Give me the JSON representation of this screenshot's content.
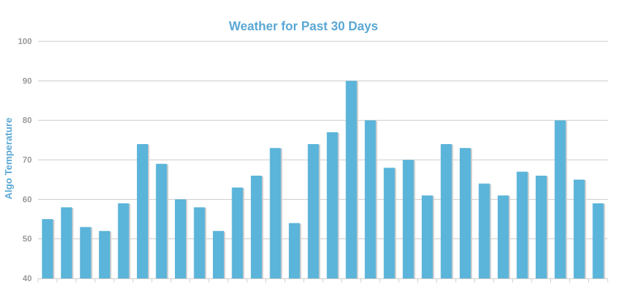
{
  "chart_data": {
    "type": "bar",
    "title": "Weather for Past 30 Days",
    "xlabel": "",
    "ylabel": "Algo Temperature",
    "ylim": [
      40,
      100
    ],
    "yticks": [
      40,
      50,
      60,
      70,
      80,
      90,
      100
    ],
    "grid": true,
    "legend": "none",
    "values": [
      55,
      58,
      53,
      52,
      59,
      74,
      69,
      60,
      58,
      52,
      63,
      66,
      73,
      54,
      74,
      77,
      90,
      80,
      68,
      70,
      61,
      74,
      73,
      64,
      61,
      67,
      66,
      80,
      65,
      59
    ],
    "colors": {
      "bar": "#5bb4d9",
      "bar_shadow": "#cfcfcf",
      "title": "#5ba8d4",
      "ylabel": "#5ba8d4",
      "grid": "#c8c8c8",
      "axis": "#cccccc",
      "tick_label": "#999999"
    }
  }
}
